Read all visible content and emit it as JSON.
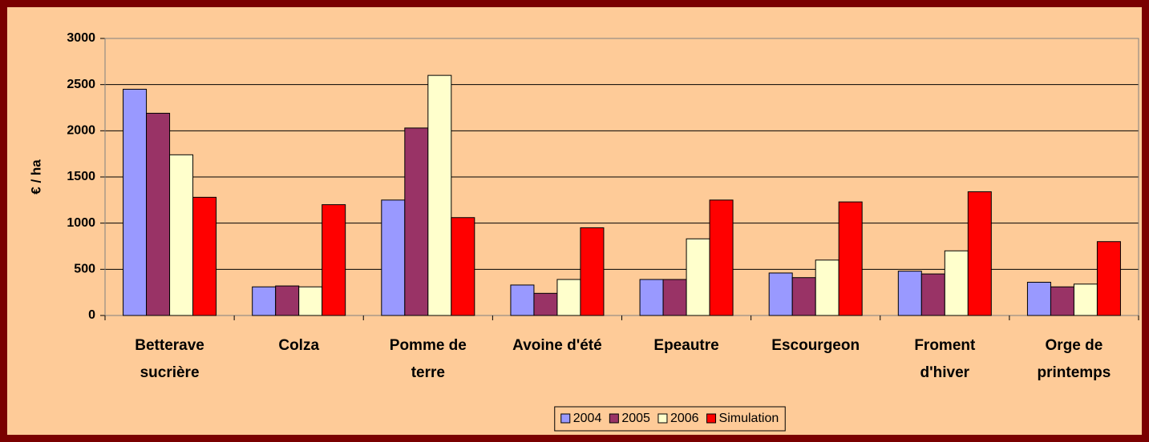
{
  "chart_data": {
    "type": "bar",
    "categories": [
      "Betterave\nsucrière",
      "Colza",
      "Pomme de\nterre",
      "Avoine d'été",
      "Epeautre",
      "Escourgeon",
      "Froment\nd'hiver",
      "Orge de\nprintemps"
    ],
    "y_label": "€ / ha",
    "series": [
      {
        "name": "2004",
        "color": "#9999ff",
        "values": [
          2450,
          310,
          1250,
          330,
          390,
          460,
          480,
          360
        ]
      },
      {
        "name": "2005",
        "color": "#993366",
        "values": [
          2190,
          320,
          2030,
          240,
          390,
          410,
          450,
          310
        ]
      },
      {
        "name": "2006",
        "color": "#ffffcc",
        "values": [
          1740,
          310,
          2600,
          390,
          830,
          600,
          700,
          340
        ]
      },
      {
        "name": "Simulation",
        "color": "#ff0000",
        "values": [
          1280,
          1200,
          1060,
          950,
          1250,
          1230,
          1340,
          800
        ]
      }
    ],
    "ylim": [
      0,
      3000
    ],
    "yticks": [
      0,
      500,
      1000,
      1500,
      2000,
      2500,
      3000
    ],
    "grid": true,
    "legend": "bottom"
  }
}
